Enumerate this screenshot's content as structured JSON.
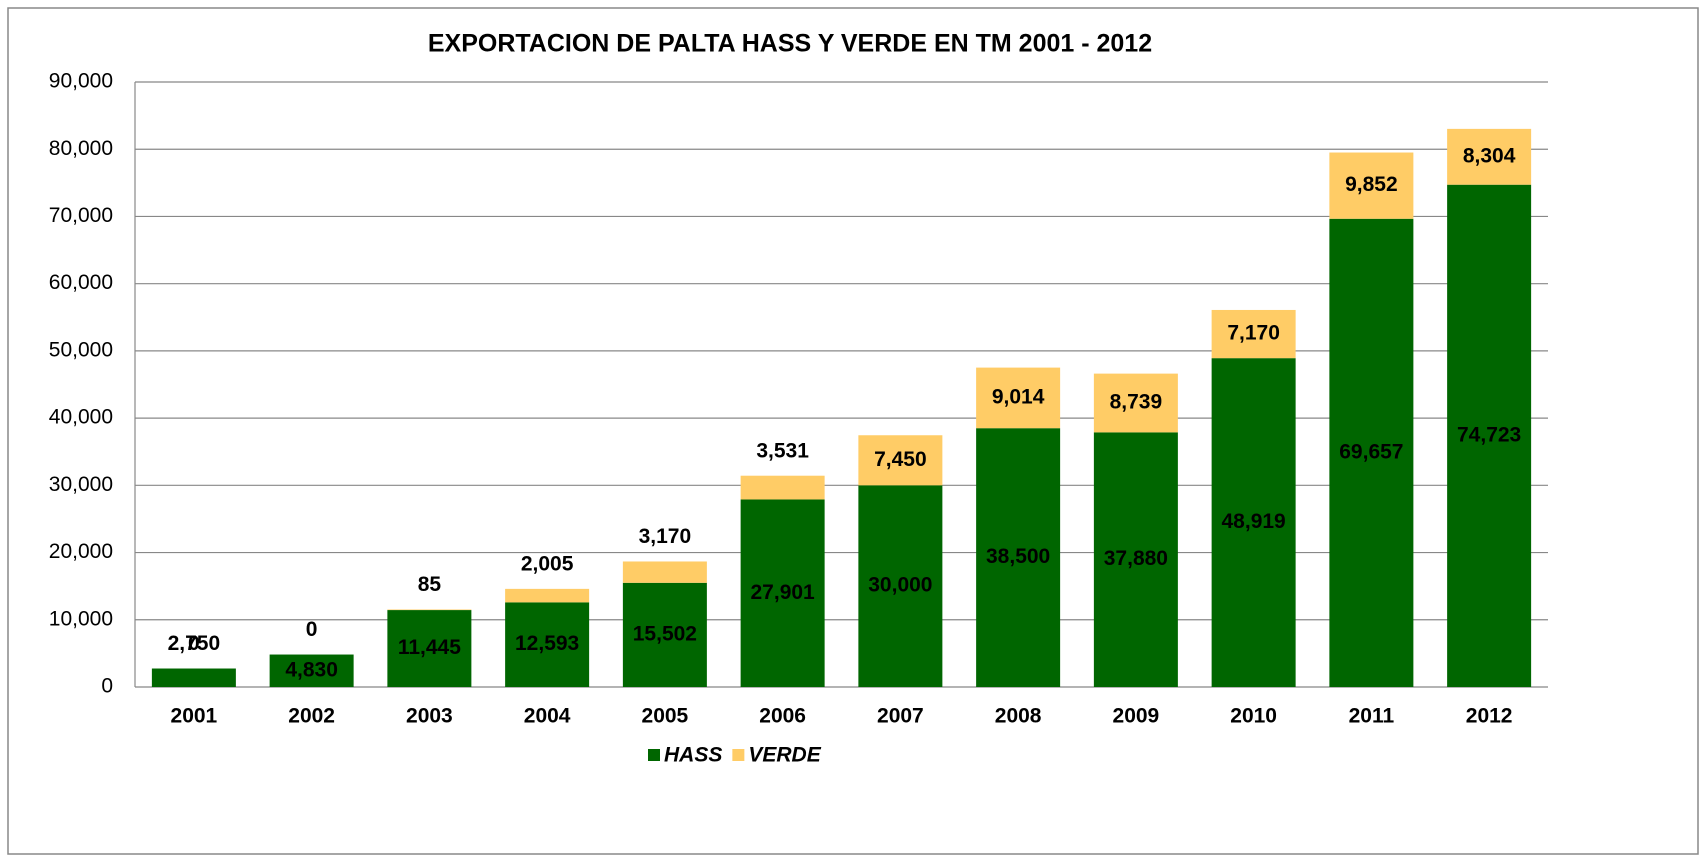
{
  "chart_data": {
    "type": "stacked-bar",
    "title": "EXPORTACION DE PALTA HASS Y VERDE EN TM 2001 - 2012",
    "categories": [
      "2001",
      "2002",
      "2003",
      "2004",
      "2005",
      "2006",
      "2007",
      "2008",
      "2009",
      "2010",
      "2011",
      "2012"
    ],
    "series": [
      {
        "name": "HASS",
        "color": "#006600",
        "values": [
          2750,
          4830,
          11445,
          12593,
          15502,
          27901,
          30000,
          38500,
          37880,
          48919,
          69657,
          74723
        ],
        "value_labels": [
          "2,750",
          "4,830",
          "11,445",
          "12,593",
          "15,502",
          "27,901",
          "30,000",
          "38,500",
          "37,880",
          "48,919",
          "69,657",
          "74,723"
        ]
      },
      {
        "name": "VERDE",
        "color": "#FFCC66",
        "values": [
          0,
          0,
          85,
          2005,
          3170,
          3531,
          7450,
          9014,
          8739,
          7170,
          9852,
          8304
        ],
        "value_labels": [
          "0",
          "0",
          "85",
          "2,005",
          "3,170",
          "3,531",
          "7,450",
          "9,014",
          "8,739",
          "7,170",
          "9,852",
          "8,304"
        ]
      }
    ],
    "ylim": [
      0,
      90000
    ],
    "yticks": [
      0,
      {
        "value": 10000,
        "label": "10,000"
      },
      {
        "value": 20000,
        "label": "20,000"
      },
      {
        "value": 30000,
        "label": "30,000"
      },
      {
        "value": 40000,
        "label": "40,000"
      },
      {
        "value": 50000,
        "label": "50,000"
      },
      {
        "value": 60000,
        "label": "60,000"
      },
      {
        "value": 70000,
        "label": "70,000"
      },
      {
        "value": 80000,
        "label": "80,000"
      },
      {
        "value": 90000,
        "label": "90,000"
      }
    ],
    "grid": true,
    "legend": "bottom"
  }
}
